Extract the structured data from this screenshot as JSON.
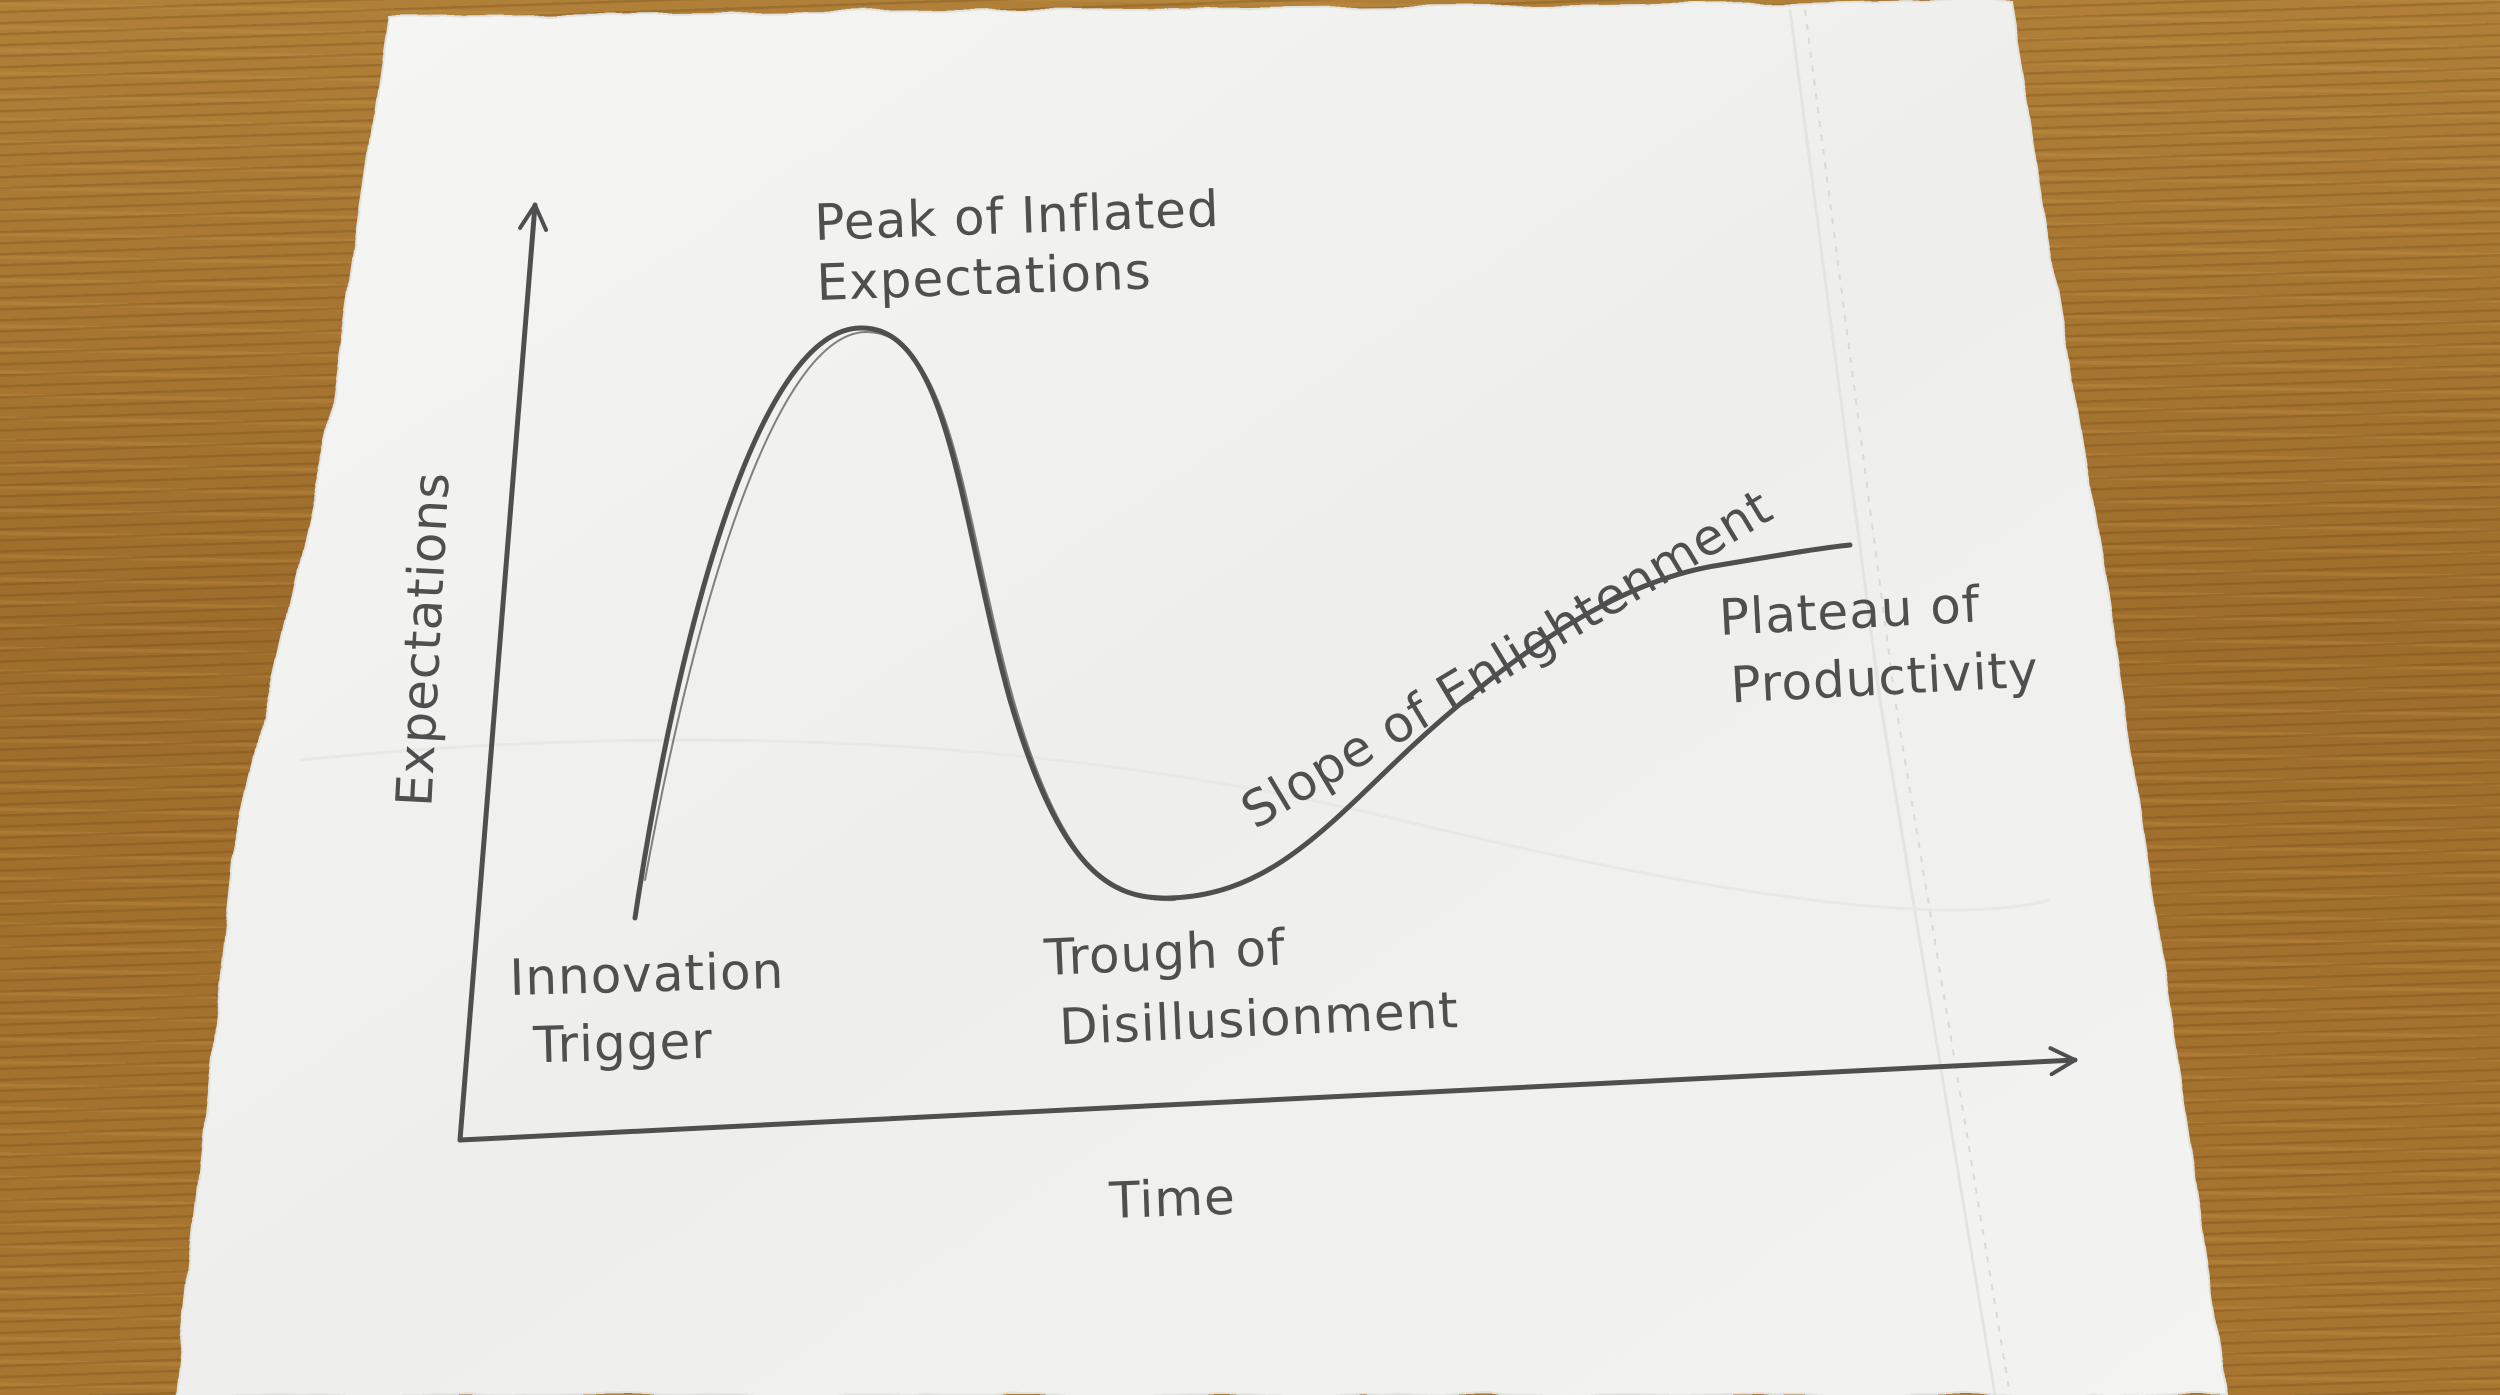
{
  "diagram": {
    "y_axis_label": "Expectations",
    "x_axis_label": "Time",
    "phases": {
      "innovation_trigger": [
        "Innovation",
        "Trigger"
      ],
      "peak": [
        "Peak of Inflated",
        "Expectations"
      ],
      "trough": [
        "Trough of",
        "Disillusionment"
      ],
      "slope": "Slope of Enlightenment",
      "plateau": [
        "Plateau of",
        "Productivity"
      ]
    }
  },
  "colors": {
    "napkin": "#f2f2f0",
    "pencil": "#4f4f4f",
    "table_wood": "#a4742f"
  }
}
